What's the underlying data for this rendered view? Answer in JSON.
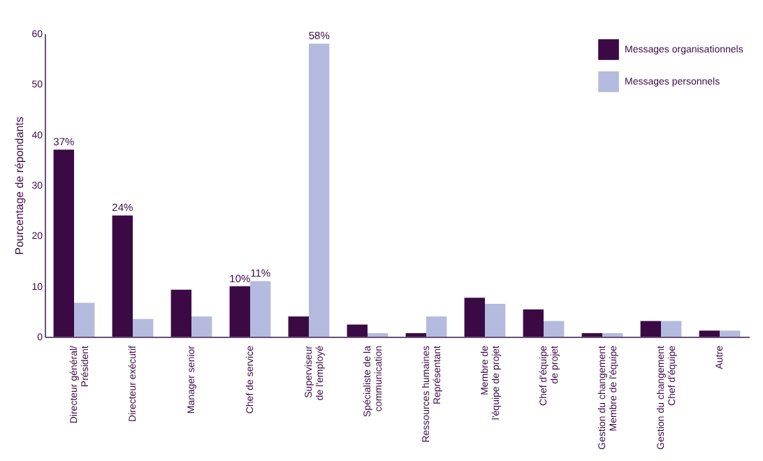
{
  "chart_data": {
    "type": "bar",
    "ylabel": "Pourcentage de répondants",
    "categories": [
      "Directeur général/\nPrésident",
      "Directeur exécutif",
      "Manager senior",
      "Chef de service",
      "Superviseur\nde l'employé",
      "Spécialiste de la\ncommunication",
      "Ressources humaines\nReprésentant",
      "Membre de\nl'équipe de projet",
      "Chef d'équipe\nde projet",
      "Gestion du changement\nMembre de l'équipe",
      "Gestion du changement\nChef d'équipe",
      "Autre"
    ],
    "series": [
      {
        "name": "Messages organisationnels",
        "color": "#3b0a45",
        "values": [
          37,
          24,
          9.3,
          10,
          4.0,
          2.4,
          0.7,
          7.7,
          5.4,
          0.7,
          3.1,
          1.2
        ],
        "value_labels": [
          "37%",
          "24%",
          null,
          "10%",
          null,
          null,
          null,
          null,
          null,
          null,
          null,
          null
        ]
      },
      {
        "name": "Messages personnels",
        "color": "#b4bbdf",
        "values": [
          6.7,
          3.5,
          4.0,
          11,
          58,
          0.7,
          4.0,
          6.5,
          3.1,
          0.7,
          3.1,
          1.2
        ],
        "value_labels": [
          null,
          null,
          null,
          "11%",
          "58%",
          null,
          null,
          null,
          null,
          null,
          null,
          null
        ]
      }
    ],
    "ylim": [
      0,
      60
    ],
    "yticks": [
      0,
      10,
      20,
      30,
      40,
      50,
      60
    ],
    "grid": false,
    "legend": "top right"
  }
}
